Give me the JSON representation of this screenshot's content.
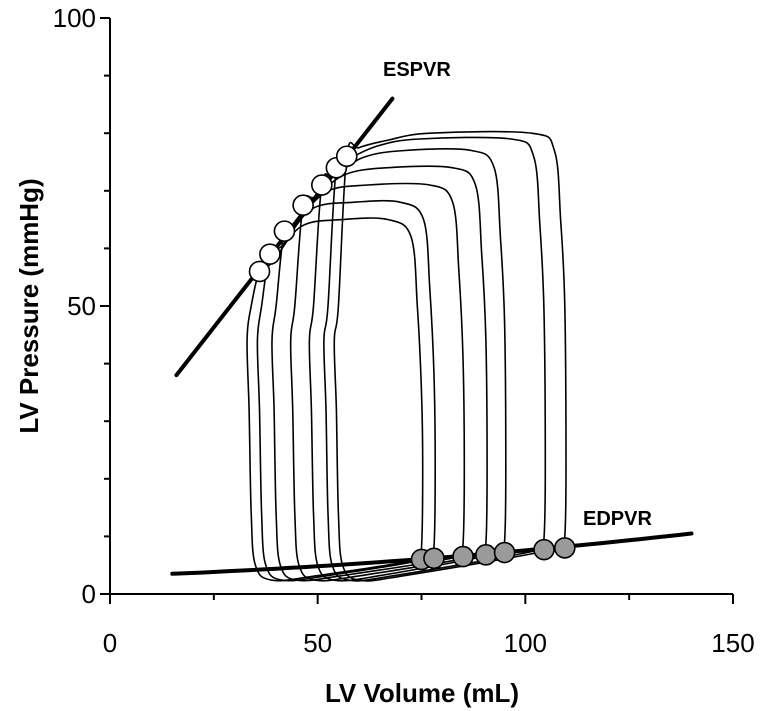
{
  "chart_data": {
    "type": "line",
    "xlabel": "LV Volume (mL)",
    "ylabel": "LV Pressure (mmHg)",
    "xlim": [
      0,
      150
    ],
    "ylim": [
      0,
      100
    ],
    "x_ticks": [
      "0",
      "50",
      "100",
      "150"
    ],
    "y_ticks": [
      "0",
      "50",
      "100"
    ],
    "x_tick_values": [
      0,
      50,
      100,
      150
    ],
    "y_tick_values": [
      0,
      50,
      100
    ],
    "grid": false,
    "annotations": [
      "ESPVR",
      "EDPVR"
    ],
    "espvr_line": {
      "x": [
        16,
        68
      ],
      "y": [
        38,
        86
      ]
    },
    "edpvr_line": {
      "x": [
        15,
        140
      ],
      "y": [
        3.5,
        10.5
      ]
    },
    "end_systolic_points": [
      {
        "x": 36,
        "y": 56
      },
      {
        "x": 38.5,
        "y": 59
      },
      {
        "x": 42,
        "y": 63
      },
      {
        "x": 46.5,
        "y": 67.5
      },
      {
        "x": 51,
        "y": 71
      },
      {
        "x": 54.5,
        "y": 74
      },
      {
        "x": 57,
        "y": 76
      }
    ],
    "end_diastolic_points": [
      {
        "x": 75,
        "y": 6
      },
      {
        "x": 78,
        "y": 6.2
      },
      {
        "x": 85,
        "y": 6.5
      },
      {
        "x": 90.5,
        "y": 6.8
      },
      {
        "x": 95,
        "y": 7.2
      },
      {
        "x": 104.5,
        "y": 7.7
      },
      {
        "x": 109.5,
        "y": 8
      }
    ],
    "loops": [
      {
        "esv": 36,
        "esp": 56,
        "peak": 65,
        "edv": 75,
        "edp": 6
      },
      {
        "esv": 38.5,
        "esp": 59,
        "peak": 68,
        "edv": 78,
        "edp": 6.2
      },
      {
        "esv": 42,
        "esp": 63,
        "peak": 71,
        "edv": 85,
        "edp": 6.5
      },
      {
        "esv": 46.5,
        "esp": 67.5,
        "peak": 74,
        "edv": 90.5,
        "edp": 6.8
      },
      {
        "esv": 51,
        "esp": 71,
        "peak": 77,
        "edv": 95,
        "edp": 7.2
      },
      {
        "esv": 54.5,
        "esp": 74,
        "peak": 79,
        "edv": 104.5,
        "edp": 7.7
      },
      {
        "esv": 57,
        "esp": 76,
        "peak": 80,
        "edv": 109.5,
        "edp": 8
      }
    ]
  }
}
